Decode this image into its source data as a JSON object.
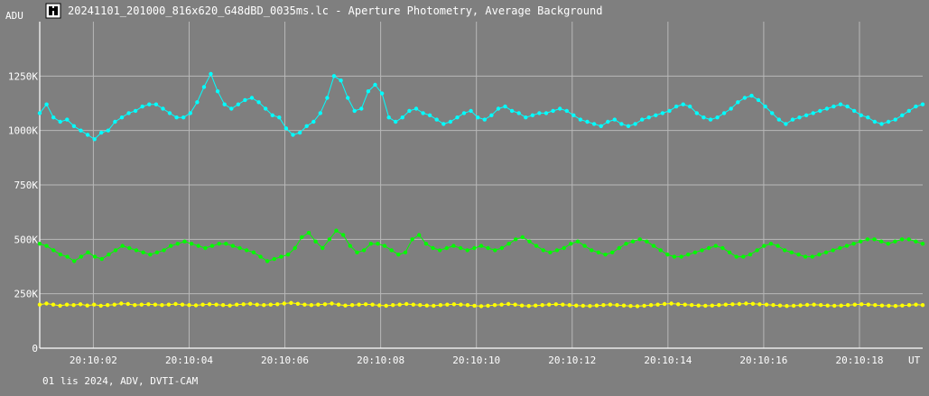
{
  "window": {
    "title": "20241101_201000_816x620_G48dBD_0035ms.lc - Aperture Photometry, Average Background",
    "icon": "app-icon"
  },
  "footer": {
    "info": "01 lis 2024, ADV, DVTI-CAM"
  },
  "colors": {
    "background": "#7f7f7f",
    "grid": "#b8b8b8",
    "axis": "#ffffff",
    "series_cyan": "#00ffff",
    "series_green": "#00ff00",
    "series_yellow": "#ffff00"
  },
  "chart_data": {
    "type": "line",
    "title": "20241101_201000_816x620_G48dBD_0035ms.lc - Aperture Photometry, Average Background",
    "ylabel": "ADU",
    "xlabel": "UT",
    "x_start": "20:10:00.88",
    "x_end": "20:10:19.32",
    "xlim_seconds": [
      0.88,
      19.32
    ],
    "ylim": [
      0,
      1500000
    ],
    "yticks": [
      0,
      250000,
      500000,
      750000,
      1000000,
      1250000
    ],
    "ytick_labels": [
      "0",
      "250K",
      "500K",
      "750K",
      "1000K",
      "1250K"
    ],
    "xticks_seconds": [
      2,
      4,
      6,
      8,
      10,
      12,
      14,
      16,
      18
    ],
    "xtick_labels": [
      "20:10:02",
      "20:10:04",
      "20:10:06",
      "20:10:08",
      "20:10:10",
      "20:10:12",
      "20:10:14",
      "20:10:16",
      "20:10:18"
    ],
    "grid": true,
    "legend": "none",
    "sample_interval_seconds": 0.035,
    "series": [
      {
        "color": "#00ffff",
        "values": [
          1080000,
          1120000,
          1060000,
          1040000,
          1050000,
          1020000,
          1000000,
          980000,
          960000,
          990000,
          1000000,
          1040000,
          1060000,
          1080000,
          1090000,
          1110000,
          1120000,
          1120000,
          1100000,
          1080000,
          1060000,
          1060000,
          1080000,
          1130000,
          1200000,
          1260000,
          1180000,
          1120000,
          1100000,
          1120000,
          1140000,
          1150000,
          1130000,
          1100000,
          1070000,
          1060000,
          1010000,
          980000,
          990000,
          1020000,
          1040000,
          1080000,
          1150000,
          1250000,
          1230000,
          1150000,
          1090000,
          1100000,
          1180000,
          1210000,
          1170000,
          1060000,
          1040000,
          1060000,
          1090000,
          1100000,
          1080000,
          1070000,
          1050000,
          1030000,
          1040000,
          1060000,
          1080000,
          1090000,
          1060000,
          1050000,
          1070000,
          1100000,
          1110000,
          1090000,
          1080000,
          1060000,
          1070000,
          1080000,
          1080000,
          1090000,
          1100000,
          1090000,
          1070000,
          1050000,
          1040000,
          1030000,
          1020000,
          1040000,
          1050000,
          1030000,
          1020000,
          1030000,
          1050000,
          1060000,
          1070000,
          1080000,
          1090000,
          1110000,
          1120000,
          1110000,
          1080000,
          1060000,
          1050000,
          1060000,
          1080000,
          1100000,
          1130000,
          1150000,
          1160000,
          1140000,
          1110000,
          1080000,
          1050000,
          1030000,
          1050000,
          1060000,
          1070000,
          1080000,
          1090000,
          1100000,
          1110000,
          1120000,
          1110000,
          1090000,
          1070000,
          1060000,
          1040000,
          1030000,
          1040000,
          1050000,
          1070000,
          1090000,
          1110000,
          1120000
        ]
      },
      {
        "color": "#00ff00",
        "values": [
          480000,
          470000,
          450000,
          430000,
          420000,
          400000,
          420000,
          440000,
          420000,
          410000,
          430000,
          450000,
          470000,
          460000,
          450000,
          440000,
          430000,
          440000,
          450000,
          470000,
          480000,
          490000,
          480000,
          470000,
          460000,
          470000,
          480000,
          480000,
          470000,
          460000,
          450000,
          440000,
          420000,
          400000,
          410000,
          420000,
          430000,
          460000,
          510000,
          530000,
          490000,
          460000,
          500000,
          540000,
          520000,
          470000,
          440000,
          450000,
          480000,
          480000,
          470000,
          450000,
          430000,
          440000,
          500000,
          520000,
          480000,
          460000,
          450000,
          460000,
          470000,
          460000,
          450000,
          460000,
          470000,
          460000,
          450000,
          460000,
          480000,
          500000,
          510000,
          490000,
          470000,
          450000,
          440000,
          450000,
          460000,
          480000,
          490000,
          470000,
          450000,
          440000,
          430000,
          440000,
          460000,
          480000,
          490000,
          500000,
          490000,
          470000,
          450000,
          430000,
          420000,
          420000,
          430000,
          440000,
          450000,
          460000,
          470000,
          460000,
          440000,
          420000,
          420000,
          430000,
          450000,
          470000,
          480000,
          470000,
          450000,
          440000,
          430000,
          420000,
          420000,
          430000,
          440000,
          450000,
          460000,
          470000,
          480000,
          490000,
          500000,
          500000,
          490000,
          480000,
          490000,
          500000,
          500000,
          490000,
          480000
        ]
      },
      {
        "color": "#ffff00",
        "values": [
          200000,
          205000,
          200000,
          195000,
          200000,
          198000,
          202000,
          196000,
          200000,
          195000,
          198000,
          200000,
          205000,
          203000,
          198000,
          200000,
          202000,
          200000,
          198000,
          200000,
          203000,
          200000,
          198000,
          197000,
          200000,
          202000,
          200000,
          198000,
          196000,
          200000,
          202000,
          204000,
          200000,
          198000,
          200000,
          202000,
          205000,
          208000,
          204000,
          200000,
          198000,
          200000,
          202000,
          205000,
          200000,
          196000,
          198000,
          200000,
          202000,
          200000,
          197000,
          195000,
          198000,
          200000,
          203000,
          200000,
          198000,
          196000,
          195000,
          198000,
          200000,
          202000,
          200000,
          198000,
          195000,
          193000,
          195000,
          198000,
          200000,
          203000,
          200000,
          196000,
          194000,
          196000,
          198000,
          200000,
          202000,
          200000,
          198000,
          196000,
          195000,
          194000,
          196000,
          198000,
          200000,
          198000,
          196000,
          194000,
          193000,
          195000,
          198000,
          200000,
          203000,
          205000,
          202000,
          200000,
          198000,
          196000,
          195000,
          196000,
          198000,
          200000,
          202000,
          203000,
          205000,
          204000,
          202000,
          200000,
          198000,
          196000,
          194000,
          195000,
          197000,
          199000,
          200000,
          198000,
          196000,
          195000,
          196000,
          198000,
          200000,
          202000,
          200000,
          198000,
          196000,
          195000,
          194000,
          196000,
          198000,
          200000,
          198000
        ]
      }
    ]
  }
}
